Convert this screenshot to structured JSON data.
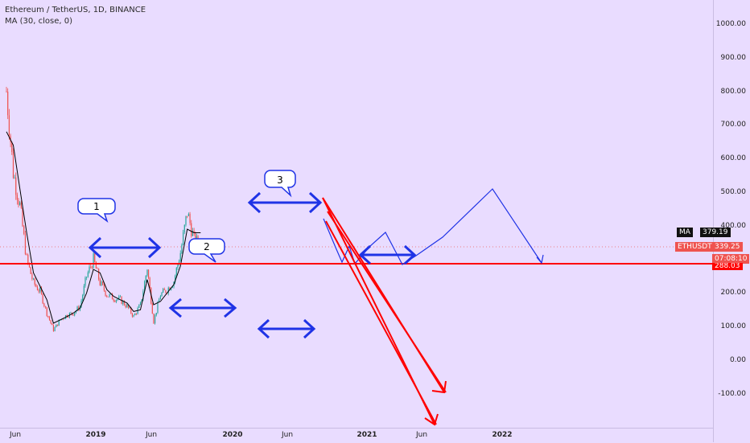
{
  "header": {
    "title": "Ethereum / TetherUS, 1D, BINANCE",
    "indicator": "MA (30, close, 0)"
  },
  "tags": {
    "ma_label": "MA",
    "ma_value": "379.19",
    "symbol": "ETHUSDT",
    "last_price": "339.25",
    "countdown": "07:08:10",
    "hline_value": "288.03"
  },
  "colors": {
    "background": "#e9dcff",
    "candle_up": "#26a69a",
    "candle_down": "#ef5350",
    "ma_line": "#000000",
    "support_line": "#ff0000",
    "drawings_blue": "#1f33e6",
    "drawings_red": "#ff0000"
  },
  "annotations": {
    "label_1": "1",
    "label_2": "2",
    "label_3": "3"
  },
  "chart_data": {
    "type": "line",
    "title": "Ethereum / TetherUS, 1D, BINANCE",
    "xlabel": "",
    "ylabel": "",
    "x": [
      "Jun",
      "2019",
      "Jun",
      "2020",
      "Jun",
      "2021",
      "Jun",
      "2022"
    ],
    "y_ticks": [
      "1000.00",
      "900.00",
      "800.00",
      "700.00",
      "600.00",
      "500.00",
      "400.00",
      "300.00",
      "200.00",
      "100.00",
      "0.00",
      "-100.00"
    ],
    "ylim": [
      -200,
      1130
    ],
    "support_level": 288.03,
    "series": [
      {
        "name": "ETHUSDT",
        "points": [
          [
            "2018-05",
            800
          ],
          [
            "2018-06",
            560
          ],
          [
            "2018-07",
            460
          ],
          [
            "2018-08",
            300
          ],
          [
            "2018-09",
            230
          ],
          [
            "2018-10",
            205
          ],
          [
            "2018-11",
            140
          ],
          [
            "2018-12",
            90
          ],
          [
            "2019-01",
            120
          ],
          [
            "2019-02",
            135
          ],
          [
            "2019-03",
            140
          ],
          [
            "2019-04",
            160
          ],
          [
            "2019-05",
            250
          ],
          [
            "2019-06",
            300
          ],
          [
            "2019-07",
            230
          ],
          [
            "2019-08",
            195
          ],
          [
            "2019-09",
            185
          ],
          [
            "2019-10",
            180
          ],
          [
            "2019-11",
            160
          ],
          [
            "2019-12",
            130
          ],
          [
            "2020-01",
            165
          ],
          [
            "2020-02",
            275
          ],
          [
            "2020-03",
            115
          ],
          [
            "2020-04",
            195
          ],
          [
            "2020-05",
            210
          ],
          [
            "2020-06",
            235
          ],
          [
            "2020-07",
            320
          ],
          [
            "2020-08",
            440
          ],
          [
            "2020-09",
            360
          ],
          [
            "2020-10",
            339.25
          ]
        ]
      },
      {
        "name": "MA (30, close, 0)",
        "points": [
          [
            "2018-05",
            680
          ],
          [
            "2018-06",
            640
          ],
          [
            "2018-07",
            510
          ],
          [
            "2018-08",
            380
          ],
          [
            "2018-09",
            260
          ],
          [
            "2018-10",
            220
          ],
          [
            "2018-11",
            180
          ],
          [
            "2018-12",
            110
          ],
          [
            "2019-01",
            120
          ],
          [
            "2019-02",
            130
          ],
          [
            "2019-03",
            140
          ],
          [
            "2019-04",
            155
          ],
          [
            "2019-05",
            200
          ],
          [
            "2019-06",
            270
          ],
          [
            "2019-07",
            260
          ],
          [
            "2019-08",
            210
          ],
          [
            "2019-09",
            190
          ],
          [
            "2019-10",
            180
          ],
          [
            "2019-11",
            170
          ],
          [
            "2019-12",
            145
          ],
          [
            "2020-01",
            150
          ],
          [
            "2020-02",
            240
          ],
          [
            "2020-03",
            165
          ],
          [
            "2020-04",
            175
          ],
          [
            "2020-05",
            200
          ],
          [
            "2020-06",
            225
          ],
          [
            "2020-07",
            280
          ],
          [
            "2020-08",
            390
          ],
          [
            "2020-09",
            379.19
          ],
          [
            "2020-10",
            379.19
          ]
        ]
      }
    ]
  }
}
